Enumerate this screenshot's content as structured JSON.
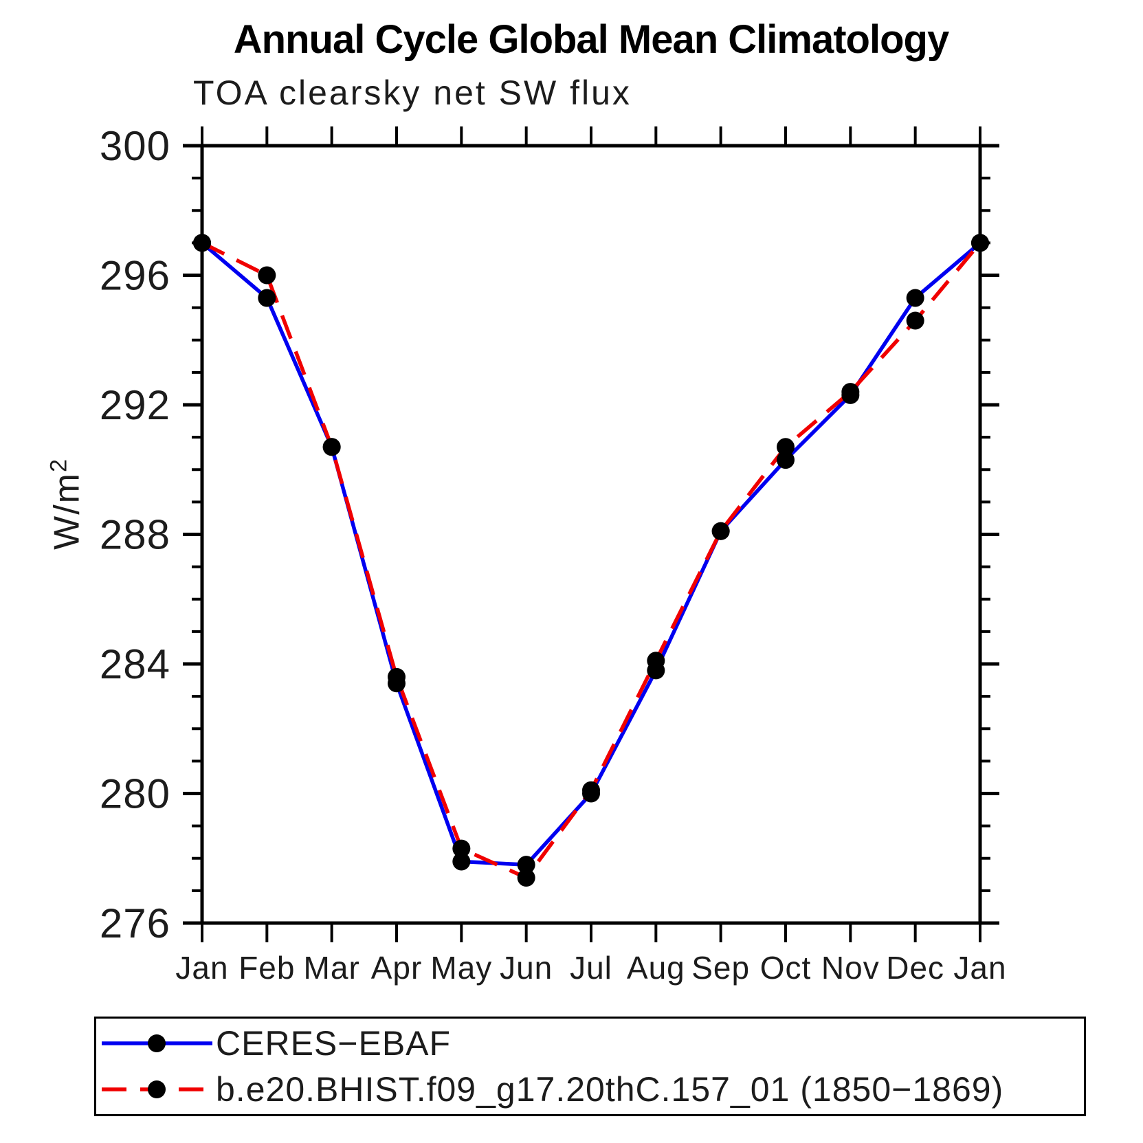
{
  "title": "Annual Cycle Global Mean Climatology",
  "subtitle": "TOA clearsky net SW flux",
  "y_axis_label": {
    "base": "W/m",
    "exponent": "2"
  },
  "chart_data": {
    "type": "line",
    "x_categories": [
      "Jan",
      "Feb",
      "Mar",
      "Apr",
      "May",
      "Jun",
      "Jul",
      "Aug",
      "Sep",
      "Oct",
      "Nov",
      "Dec",
      "Jan"
    ],
    "ylim": [
      276,
      300
    ],
    "y_major_ticks": [
      300,
      296,
      292,
      288,
      284,
      280,
      276
    ],
    "y_minor_step": 1,
    "grid": false,
    "frame_color": "#000000",
    "legend_position": "bottom",
    "series": [
      {
        "name": "CERES−EBAF",
        "color": "#0000f0",
        "style": "solid",
        "marker": "circle",
        "marker_color": "#000000",
        "values": [
          297.0,
          295.3,
          290.7,
          283.4,
          277.9,
          277.8,
          280.0,
          283.8,
          288.1,
          290.3,
          292.3,
          295.3,
          297.0
        ]
      },
      {
        "name": "b.e20.BHIST.f09_g17.20thC.157_01 (1850−1869)",
        "color": "#f00000",
        "style": "dashed",
        "marker": "circle",
        "marker_color": "#000000",
        "values": [
          297.0,
          296.0,
          290.7,
          283.6,
          278.3,
          277.4,
          280.1,
          284.1,
          288.1,
          290.7,
          292.4,
          294.6,
          297.0
        ]
      }
    ]
  }
}
